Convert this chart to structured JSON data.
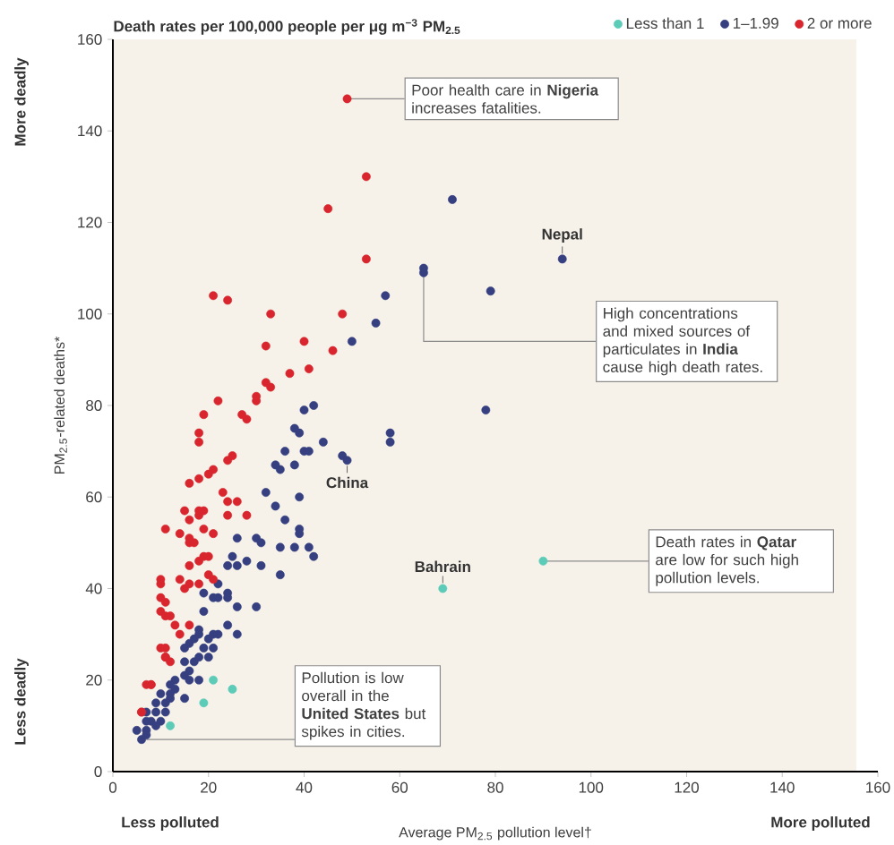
{
  "chart_data": {
    "type": "scatter",
    "legend_title": "Death rates per 100,000 people per μg m$^{−3}$ PM$_{2.5}$",
    "xlabel": "Average PM$_{2.5}$ pollution level†",
    "ylabel": "PM$_{2.5}$-related deaths*",
    "xlim": [
      0,
      160
    ],
    "ylim": [
      0,
      160
    ],
    "xticks": [
      0,
      20,
      40,
      60,
      80,
      100,
      120,
      140,
      160
    ],
    "yticks": [
      0,
      20,
      40,
      60,
      80,
      100,
      120,
      140,
      160
    ],
    "legend": "top right",
    "marker": "circle",
    "series": [
      {
        "name": "Less than 1",
        "color": "#5ccbb8",
        "x": [
          21,
          25,
          19,
          12,
          69,
          90
        ],
        "values": [
          20,
          18,
          15,
          10,
          40,
          46
        ]
      },
      {
        "name": "1–1.99",
        "color": "#363f80",
        "x": [
          71,
          94,
          65,
          65,
          79,
          57,
          55,
          50,
          78,
          58,
          58,
          42,
          40,
          38,
          39,
          44,
          36,
          40,
          41,
          48,
          49,
          32,
          34,
          39,
          36,
          39,
          39,
          26,
          30,
          31,
          35,
          38,
          41,
          34,
          35,
          38,
          42,
          25,
          28,
          26,
          24,
          31,
          35,
          22,
          19,
          21,
          22,
          24,
          24,
          26,
          30,
          19,
          24,
          22,
          21,
          26,
          18,
          18,
          17,
          16,
          15,
          20,
          21,
          19,
          20,
          18,
          17,
          15,
          16,
          15,
          13,
          16,
          18,
          12,
          13,
          10,
          12,
          12,
          15,
          9,
          11,
          9,
          11,
          7,
          8,
          10,
          7,
          9,
          5,
          7,
          6,
          7
        ],
        "values": [
          125,
          112,
          110,
          109,
          105,
          104,
          98,
          94,
          79,
          74,
          72,
          80,
          79,
          75,
          74,
          72,
          70,
          70,
          70,
          69,
          68,
          61,
          58,
          60,
          55,
          53,
          52,
          51,
          51,
          50,
          49,
          49,
          49,
          67,
          66,
          67,
          47,
          47,
          46,
          45,
          45,
          45,
          43,
          41,
          39,
          38,
          38,
          39,
          38,
          36,
          36,
          35,
          32,
          30,
          30,
          30,
          31,
          30,
          29,
          28,
          27,
          29,
          27,
          27,
          25,
          25,
          24,
          24,
          22,
          21,
          20,
          20,
          20,
          19,
          18,
          17,
          17,
          16,
          16,
          15,
          15,
          13,
          13,
          13,
          11,
          11,
          11,
          10,
          9,
          9,
          7,
          8
        ]
      },
      {
        "name": "2 or more",
        "color": "#d9262e",
        "x": [
          21,
          24,
          33,
          48,
          32,
          40,
          46,
          37,
          41,
          32,
          33,
          22,
          30,
          30,
          19,
          27,
          28,
          18,
          18,
          25,
          24,
          21,
          20,
          18,
          16,
          23,
          24,
          26,
          15,
          18,
          18,
          19,
          24,
          28,
          16,
          19,
          21,
          11,
          16,
          17,
          49,
          53,
          45,
          53,
          10,
          10,
          14,
          18,
          19,
          20,
          16,
          18,
          20,
          21,
          15,
          16,
          10,
          11,
          10,
          11,
          12,
          13,
          14,
          16,
          10,
          11,
          11,
          11,
          12,
          7,
          8,
          8,
          6,
          6,
          14,
          16
        ],
        "values": [
          104,
          103,
          100,
          100,
          93,
          94,
          92,
          87,
          88,
          85,
          84,
          81,
          82,
          81,
          78,
          78,
          77,
          74,
          72,
          69,
          68,
          66,
          65,
          64,
          63,
          61,
          59,
          59,
          57,
          57,
          56,
          57,
          56,
          56,
          55,
          53,
          52,
          53,
          51,
          50,
          147,
          130,
          123,
          112,
          42,
          41,
          42,
          46,
          47,
          47,
          45,
          41,
          43,
          42,
          40,
          41,
          38,
          37,
          35,
          34,
          34,
          32,
          30,
          32,
          27,
          27,
          25,
          25,
          24,
          19,
          19,
          19,
          13,
          13,
          52,
          50
        ]
      }
    ],
    "annotations": [
      {
        "text": "Poor health care in **Nigeria** increases fatalities.",
        "x": 49,
        "y": 147
      },
      {
        "text": "High concentrations and mixed sources of particulates in **India** cause high death rates.",
        "x": 65,
        "y": 109
      },
      {
        "text": "Death rates in **Qatar** are low for such high pollution levels.",
        "x": 90,
        "y": 46
      },
      {
        "text": "Pollution is low overall in the **United States** but spikes in cities.",
        "x": 7,
        "y": 7
      },
      {
        "text": "Nepal",
        "x": 94,
        "y": 112
      },
      {
        "text": "China",
        "x": 49,
        "y": 68
      },
      {
        "text": "Bahrain",
        "x": 69,
        "y": 40
      },
      "More deadly",
      "Less deadly",
      "Less polluted",
      "More polluted"
    ]
  }
}
